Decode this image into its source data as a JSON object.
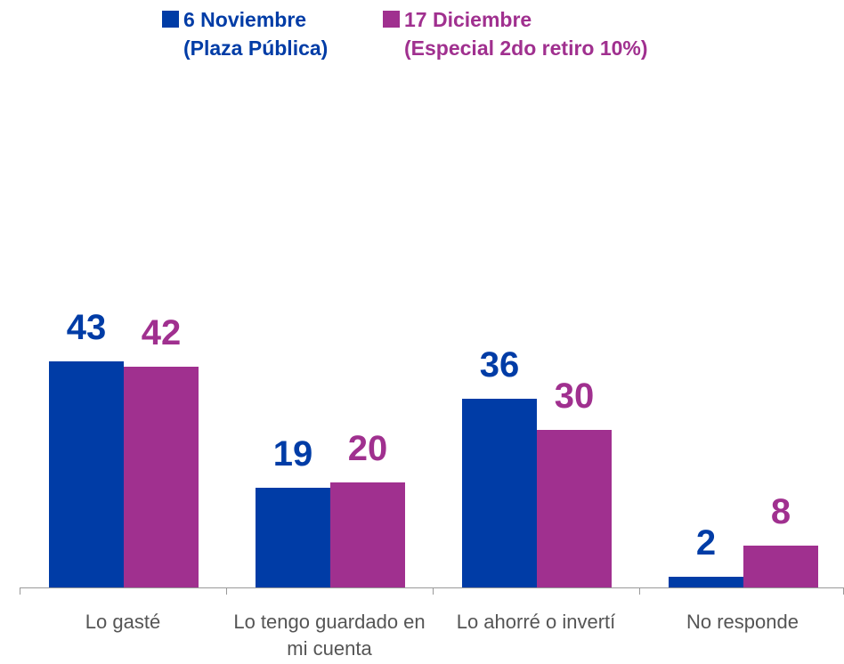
{
  "chart_data": {
    "type": "bar",
    "categories": [
      "Lo gasté",
      "Lo tengo guardado en mi cuenta",
      "Lo ahorré o invertí",
      "No responde"
    ],
    "series": [
      {
        "name": "6 Noviembre\n(Plaza Pública)",
        "color": "#003ca6",
        "values": [
          43,
          19,
          36,
          2
        ]
      },
      {
        "name": "17 Diciembre\n(Especial 2do retiro 10%)",
        "color": "#a0308f",
        "values": [
          42,
          20,
          30,
          8
        ]
      }
    ]
  }
}
